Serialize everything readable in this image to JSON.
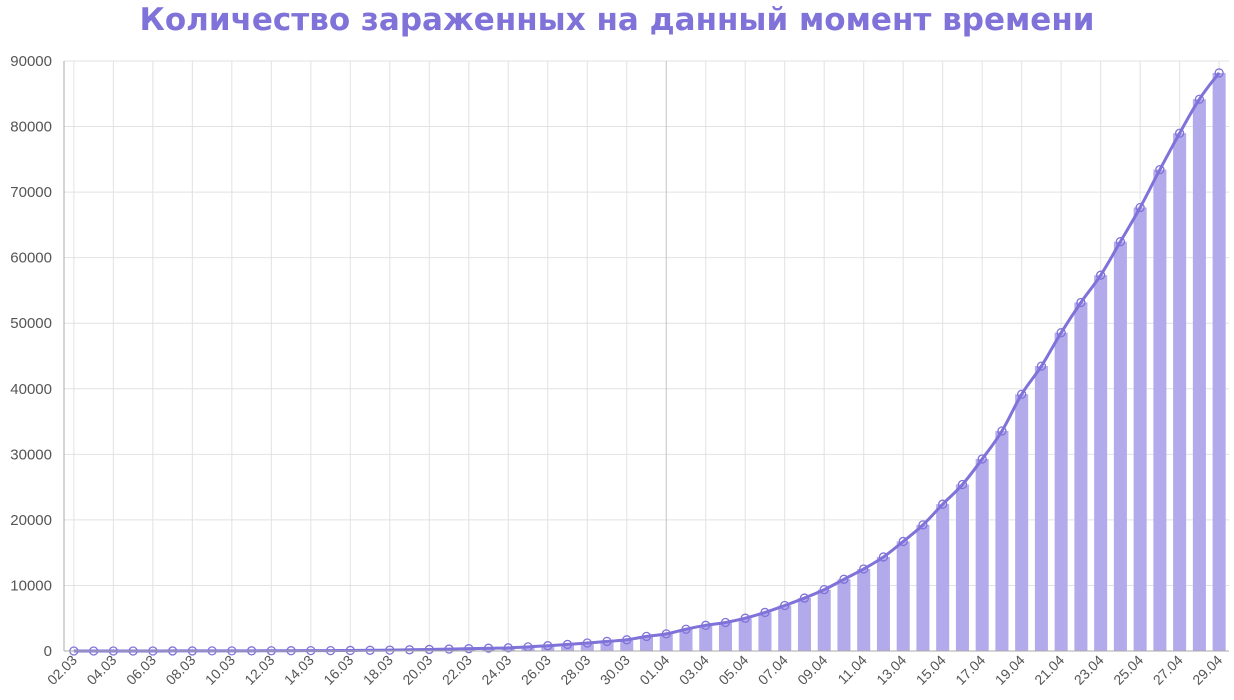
{
  "chart_data": {
    "type": "bar",
    "title": "Количество зараженных на данный момент времени",
    "xlabel": "",
    "ylabel": "",
    "ylim": [
      0,
      90000
    ],
    "yticks": [
      0,
      10000,
      20000,
      30000,
      40000,
      50000,
      60000,
      70000,
      80000,
      90000
    ],
    "grid": true,
    "legend": "none",
    "categories": [
      "02.03",
      "03.03",
      "04.03",
      "05.03",
      "06.03",
      "07.03",
      "08.03",
      "09.03",
      "10.03",
      "11.03",
      "12.03",
      "13.03",
      "14.03",
      "15.03",
      "16.03",
      "17.03",
      "18.03",
      "19.03",
      "20.03",
      "21.03",
      "22.03",
      "23.03",
      "24.03",
      "25.03",
      "26.03",
      "27.03",
      "28.03",
      "29.03",
      "30.03",
      "31.03",
      "01.04",
      "02.04",
      "03.04",
      "04.04",
      "05.04",
      "06.04",
      "07.04",
      "08.04",
      "09.04",
      "10.04",
      "11.04",
      "12.04",
      "13.04",
      "14.04",
      "15.04",
      "16.04",
      "17.04",
      "18.04",
      "19.04",
      "20.04",
      "21.04",
      "22.04",
      "23.04",
      "24.04",
      "25.04",
      "26.04",
      "27.04",
      "28.04",
      "29.04"
    ],
    "tick_labels": [
      "02.03",
      "04.03",
      "06.03",
      "08.03",
      "10.03",
      "12.03",
      "14.03",
      "16.03",
      "18.03",
      "20.03",
      "22.03",
      "24.03",
      "26.03",
      "28.03",
      "30.03",
      "01.04",
      "03.04",
      "05.04",
      "07.04",
      "09.04",
      "11.04",
      "13.04",
      "15.04",
      "17.04",
      "19.04",
      "21.04",
      "23.04",
      "25.04",
      "27.04",
      "29.04"
    ],
    "values": [
      3,
      3,
      3,
      3,
      4,
      10,
      13,
      16,
      19,
      26,
      33,
      44,
      54,
      57,
      83,
      107,
      139,
      184,
      238,
      294,
      354,
      427,
      485,
      632,
      808,
      1002,
      1223,
      1460,
      1710,
      2226,
      2609,
      3320,
      3917,
      4350,
      5006,
      5880,
      6937,
      8077,
      9357,
      10938,
      12513,
      14347,
      16710,
      19238,
      22393,
      25402,
      29292,
      33556,
      39162,
      43459,
      48559,
      53166,
      57327,
      62439,
      67648,
      73435,
      78983,
      84166,
      88180
    ],
    "colors": {
      "bar": "#b3aaeb",
      "line": "#7f72d9",
      "grid": "#e2e2e2",
      "axis": "#aaaaaa",
      "title": "#7f72d9"
    }
  }
}
